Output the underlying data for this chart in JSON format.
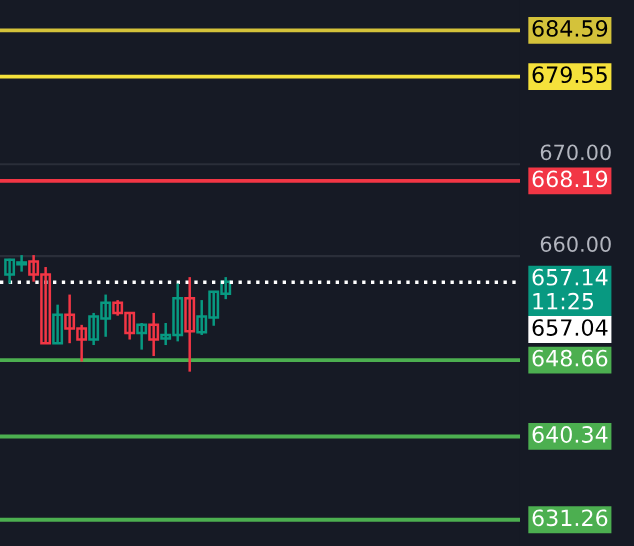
{
  "chart_data": {
    "type": "candlestick",
    "categories": [
      null,
      null,
      null,
      null,
      null,
      null,
      null,
      null,
      null,
      null,
      null,
      null,
      null,
      null,
      null,
      null,
      null,
      null,
      null,
      null,
      null,
      null,
      null,
      null,
      null,
      null,
      null,
      null,
      null,
      null,
      null,
      null,
      null,
      null,
      null,
      null,
      null,
      null,
      null,
      null,
      null,
      null,
      null
    ],
    "ohlc": [
      [
        658.0,
        659.7,
        657.0,
        659.6
      ],
      [
        659.1,
        660.1,
        658.3,
        659.3
      ],
      [
        659.4,
        660.1,
        657.2,
        658.0
      ],
      [
        658.0,
        658.8,
        650.5,
        650.5
      ],
      [
        650.5,
        654.7,
        650.5,
        653.6
      ],
      [
        653.6,
        655.8,
        650.5,
        652.1
      ],
      [
        652.1,
        652.5,
        648.5,
        650.9
      ],
      [
        650.9,
        653.8,
        650.3,
        653.4
      ],
      [
        653.2,
        655.8,
        651.2,
        654.9
      ],
      [
        654.9,
        655.2,
        653.5,
        653.8
      ],
      [
        653.8,
        653.8,
        650.9,
        651.6
      ],
      [
        651.6,
        652.7,
        649.8,
        652.5
      ],
      [
        652.5,
        653.8,
        649.1,
        650.9
      ],
      [
        651.0,
        652.7,
        650.3,
        651.4
      ],
      [
        651.4,
        657.0,
        650.7,
        655.4
      ],
      [
        655.4,
        657.7,
        647.4,
        651.8
      ],
      [
        651.7,
        655.2,
        651.4,
        653.4
      ],
      [
        653.3,
        656.1,
        652.4,
        656.1
      ],
      [
        655.9,
        657.7,
        655.3,
        657.2
      ],
      null,
      null,
      null,
      null,
      null,
      null,
      null,
      null,
      null,
      null,
      null,
      null,
      null,
      null,
      null,
      null,
      null,
      null,
      null,
      null,
      null,
      null,
      null,
      null
    ],
    "colors": [
      "#089981",
      "#089981",
      "#f23645",
      "#f23645",
      "#089981",
      "#f23645",
      "#f23645",
      "#089981",
      "#089981",
      "#f23645",
      "#f23645",
      "#089981",
      "#f23645",
      "#089981",
      "#089981",
      "#f23645",
      "#089981",
      "#089981",
      "#089981",
      null,
      null,
      null,
      null,
      null,
      null,
      null,
      null,
      null,
      null,
      null,
      null,
      null,
      null,
      null,
      null,
      null,
      null,
      null,
      null,
      null,
      null,
      null,
      null
    ],
    "annotations": [
      "657.04"
    ],
    "ylim": [
      628.4,
      687.9
    ],
    "yticks": [
      {
        "value": 670,
        "label": "670.00"
      },
      {
        "value": 660,
        "label": "660.00"
      }
    ],
    "grid": "y",
    "ref_lines": [
      {
        "axis": "y",
        "value": 684.59,
        "label": "684.59",
        "color": "#d4c23a",
        "line_style": "solid"
      },
      {
        "axis": "y",
        "value": 679.55,
        "label": "679.55",
        "color": "#f5e13b",
        "line_style": "solid"
      },
      {
        "axis": "y",
        "value": 668.19,
        "label": "668.19",
        "color": "#f23645",
        "line_style": "solid"
      },
      {
        "axis": "y",
        "value": 657.14,
        "label": "657.14\n11:25",
        "color": "#ffffff",
        "line_style": "dotted"
      },
      {
        "axis": "y",
        "value": 648.66,
        "label": "648.66",
        "color": "#4caf50",
        "line_style": "solid"
      },
      {
        "axis": "y",
        "value": 640.34,
        "label": "640.34",
        "color": "#4caf50",
        "line_style": "solid"
      },
      {
        "axis": "y",
        "value": 631.26,
        "label": "631.26",
        "color": "#4caf50",
        "line_style": "solid"
      }
    ]
  }
}
